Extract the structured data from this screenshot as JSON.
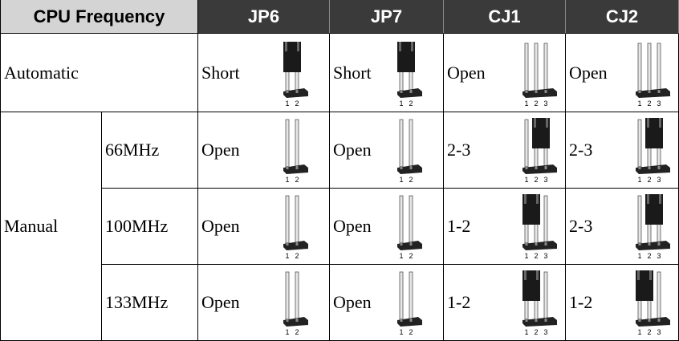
{
  "table": {
    "header": [
      "CPU Frequency",
      "JP6",
      "JP7",
      "CJ1",
      "CJ2"
    ],
    "pin_labels": [
      [
        "1",
        "2"
      ],
      [
        "1",
        "2"
      ],
      [
        "1",
        "2",
        "3"
      ],
      [
        "1",
        "2",
        "3"
      ]
    ],
    "automatic": {
      "label": "Automatic",
      "settings": [
        "Short",
        "Short",
        "Open",
        "Open"
      ]
    },
    "manual": {
      "label": "Manual",
      "rows": [
        {
          "label": "66MHz",
          "settings": [
            "Open",
            "Open",
            "2-3",
            "2-3"
          ]
        },
        {
          "label": "100MHz",
          "settings": [
            "Open",
            "Open",
            "1-2",
            "2-3"
          ]
        },
        {
          "label": "133MHz",
          "settings": [
            "Open",
            "Open",
            "1-2",
            "1-2"
          ]
        }
      ]
    }
  }
}
